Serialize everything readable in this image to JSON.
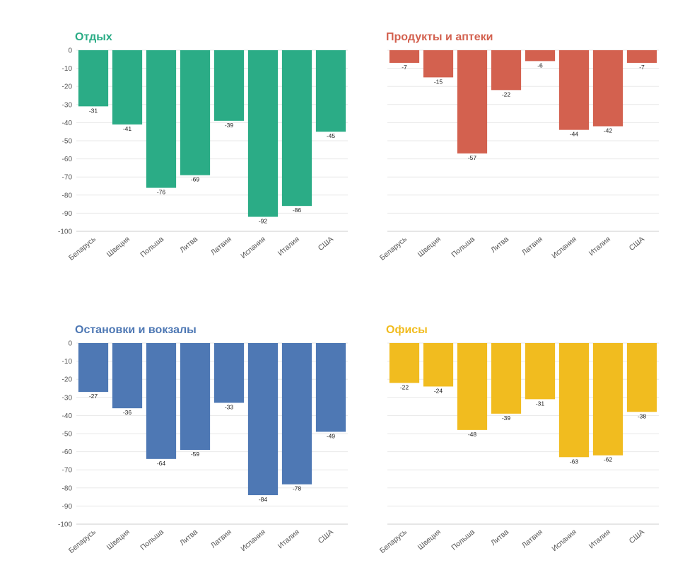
{
  "chart_data": [
    {
      "type": "bar",
      "title": "Отдых",
      "color": "#2bac86",
      "categories": [
        "Беларусь",
        "Швеция",
        "Польша",
        "Литва",
        "Латвия",
        "Испания",
        "Италия",
        "США"
      ],
      "values": [
        -31,
        -41,
        -76,
        -69,
        -39,
        -92,
        -86,
        -45
      ],
      "ylim": [
        -100,
        0
      ],
      "yticks": [
        0,
        -10,
        -20,
        -30,
        -40,
        -50,
        -60,
        -70,
        -80,
        -90,
        -100
      ],
      "show_ytick_labels": true,
      "xlabel": "",
      "ylabel": ""
    },
    {
      "type": "bar",
      "title": "Продукты и аптеки",
      "color": "#d3614f",
      "categories": [
        "Беларусь",
        "Швеция",
        "Польша",
        "Литва",
        "Латвия",
        "Испания",
        "Италия",
        "США"
      ],
      "values": [
        -7,
        -15,
        -57,
        -22,
        -6,
        -44,
        -42,
        -7
      ],
      "ylim": [
        -100,
        0
      ],
      "yticks": [
        0,
        -10,
        -20,
        -30,
        -40,
        -50,
        -60,
        -70,
        -80,
        -90,
        -100
      ],
      "show_ytick_labels": false,
      "xlabel": "",
      "ylabel": ""
    },
    {
      "type": "bar",
      "title": "Остановки и вокзалы",
      "color": "#4e78b4",
      "categories": [
        "Беларусь",
        "Швеция",
        "Польша",
        "Литва",
        "Латвия",
        "Испания",
        "Италия",
        "США"
      ],
      "values": [
        -27,
        -36,
        -64,
        -59,
        -33,
        -84,
        -78,
        -49
      ],
      "ylim": [
        -100,
        0
      ],
      "yticks": [
        0,
        -10,
        -20,
        -30,
        -40,
        -50,
        -60,
        -70,
        -80,
        -90,
        -100
      ],
      "show_ytick_labels": true,
      "xlabel": "",
      "ylabel": ""
    },
    {
      "type": "bar",
      "title": "Офисы",
      "color": "#f1bc1f",
      "categories": [
        "Беларусь",
        "Швеция",
        "Польша",
        "Литва",
        "Латвия",
        "Испания",
        "Италия",
        "США"
      ],
      "values": [
        -22,
        -24,
        -48,
        -39,
        -31,
        -63,
        -62,
        -38
      ],
      "ylim": [
        -100,
        0
      ],
      "yticks": [
        0,
        -10,
        -20,
        -30,
        -40,
        -50,
        -60,
        -70,
        -80,
        -90,
        -100
      ],
      "show_ytick_labels": false,
      "xlabel": "",
      "ylabel": ""
    }
  ]
}
